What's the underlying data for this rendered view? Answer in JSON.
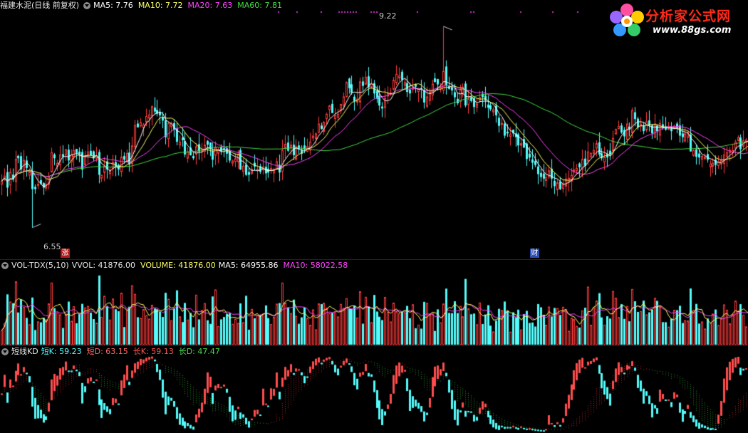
{
  "stock": {
    "name_label": "福建水泥(日线 前复权)",
    "ma5": "MA5: 7.76",
    "ma10": "MA10: 7.72",
    "ma20": "MA20: 7.63",
    "ma60": "MA60: 7.81",
    "high_mark": "9.22",
    "low_mark": "6.55",
    "tag_zhang": "涨",
    "tag_cai": "财"
  },
  "volume": {
    "name_label": "VOL-TDX(5,10)",
    "vvol": "VVOL: 41876.00",
    "volume": "VOLUME: 41876.00",
    "ma5": "MA5: 64955.86",
    "ma10": "MA10: 58022.58"
  },
  "kd": {
    "name_label": "短线KD",
    "short_k": "短K: 59.23",
    "short_d": "短D: 63.15",
    "long_k": "长K: 59.13",
    "long_d": "长D: 47.47"
  },
  "logo": {
    "title": "分析家公式网",
    "url": "www.88gs.com"
  },
  "colors": {
    "up": "#ff3b3b",
    "down": "#54fcfc",
    "ma5": "#ffffff",
    "ma10": "#ffff66",
    "ma20": "#ff44ff",
    "ma60": "#44dd44",
    "separator": "#7a0000"
  },
  "chart_data": [
    {
      "type": "candlestick",
      "title": "福建水泥(日线 前复权)",
      "ylim": [
        6.3,
        9.4
      ],
      "marked_high": 9.22,
      "marked_low": 6.55,
      "series": [
        {
          "name": "MA5",
          "last": 7.76
        },
        {
          "name": "MA10",
          "last": 7.72
        },
        {
          "name": "MA20",
          "last": 7.63
        },
        {
          "name": "MA60",
          "last": 7.81
        }
      ],
      "close": [
        7.17,
        7.24,
        7.08,
        7.29,
        7.19,
        7.46,
        7.47,
        7.32,
        7.45,
        7.34,
        7.29,
        7.06,
        7.06,
        7.13,
        7.13,
        7.08,
        7.13,
        7.23,
        7.55,
        7.47,
        7.41,
        7.52,
        7.49,
        7.59,
        7.44,
        7.52,
        7.58,
        7.54,
        7.53,
        7.32,
        7.5,
        7.56,
        7.51,
        7.47,
        7.51,
        7.25,
        7.25,
        7.37,
        7.32,
        7.31,
        7.42,
        7.36,
        7.32,
        7.49,
        7.45,
        7.54,
        7.39,
        7.64,
        7.91,
        7.88,
        7.95,
        7.92,
        8.03,
        8.05,
        8.16,
        8.09,
        8.06,
        8.04,
        7.97,
        7.75,
        7.94,
        7.94,
        7.85,
        7.69,
        7.69,
        7.71,
        7.52,
        7.56,
        7.51,
        7.47,
        7.63,
        7.56,
        7.58,
        7.65,
        7.65,
        7.59,
        7.45,
        7.62,
        7.58,
        7.56,
        7.58,
        7.53,
        7.44,
        7.44,
        7.47,
        7.53,
        7.32,
        7.37,
        7.25,
        7.25,
        7.33,
        7.36,
        7.33,
        7.29,
        7.36,
        7.27,
        7.28,
        7.34,
        7.32,
        7.43,
        7.28,
        7.58,
        7.66,
        7.57,
        7.65,
        7.51,
        7.63,
        7.59,
        7.53,
        7.59,
        7.63,
        7.69,
        7.77,
        7.8,
        7.93,
        7.86,
        7.95,
        8.06,
        8.17,
        8.07,
        8.04,
        8.06,
        8.19,
        8.29,
        8.48,
        8.4,
        8.34,
        8.23,
        8.26,
        8.49,
        8.43,
        8.55,
        8.41,
        8.46,
        8.33,
        8.26,
        8.17,
        8.13,
        8.27,
        8.34,
        8.34,
        8.51,
        8.59,
        8.57,
        8.51,
        8.48,
        8.35,
        8.33,
        8.42,
        8.42,
        8.4,
        8.38,
        8.21,
        8.29,
        8.35,
        8.46,
        8.48,
        8.45,
        8.42,
        8.63,
        8.44,
        8.39,
        8.37,
        8.28,
        8.2,
        8.38,
        8.42,
        8.17,
        8.26,
        8.23,
        8.15,
        8.19,
        8.28,
        8.28,
        8.24,
        8.14,
        8.12,
        8.12,
        8.04,
        7.9,
        7.94,
        7.77,
        7.8,
        7.79,
        7.8,
        7.75,
        7.64,
        7.67,
        7.61,
        7.46,
        7.48,
        7.41,
        7.38,
        7.26,
        7.22,
        7.2,
        7.22,
        7.31,
        7.2,
        7.1,
        7.15,
        7.06,
        7.13,
        7.2,
        7.21,
        7.25,
        7.32,
        7.34,
        7.35,
        7.46,
        7.37,
        7.56,
        7.54,
        7.58,
        7.67,
        7.52,
        7.47,
        7.49,
        7.48,
        7.52,
        7.74,
        7.86,
        7.9,
        7.81,
        7.76,
        7.93,
        7.86,
        8.11,
        7.99,
        7.88,
        7.93,
        7.83,
        7.96,
        7.9,
        7.8,
        7.93,
        7.83,
        7.94,
        7.87,
        7.85,
        7.87,
        7.83,
        7.9,
        7.88,
        7.77,
        7.75,
        7.8,
        7.82,
        7.56,
        7.58,
        7.49,
        7.48,
        7.5,
        7.49,
        7.45,
        7.4,
        7.41,
        7.38,
        7.43,
        7.45,
        7.52,
        7.55,
        7.58,
        7.58,
        7.69,
        7.75,
        7.59,
        7.71,
        7.72,
        7.72,
        7.67,
        7.66,
        7.82,
        7.76
      ]
    },
    {
      "type": "bar",
      "title": "VOL-TDX(5,10)",
      "series": [
        {
          "name": "VVOL",
          "last": 41876.0
        },
        {
          "name": "VOLUME",
          "last": 41876.0
        },
        {
          "name": "MA5",
          "last": 64955.86
        },
        {
          "name": "MA10",
          "last": 58022.58
        }
      ]
    },
    {
      "type": "bar",
      "title": "短线KD",
      "ylim": [
        0,
        100
      ],
      "series": [
        {
          "name": "短K",
          "last": 59.23
        },
        {
          "name": "短D",
          "last": 63.15
        },
        {
          "name": "长K",
          "last": 59.13
        },
        {
          "name": "长D",
          "last": 47.47
        }
      ]
    }
  ]
}
